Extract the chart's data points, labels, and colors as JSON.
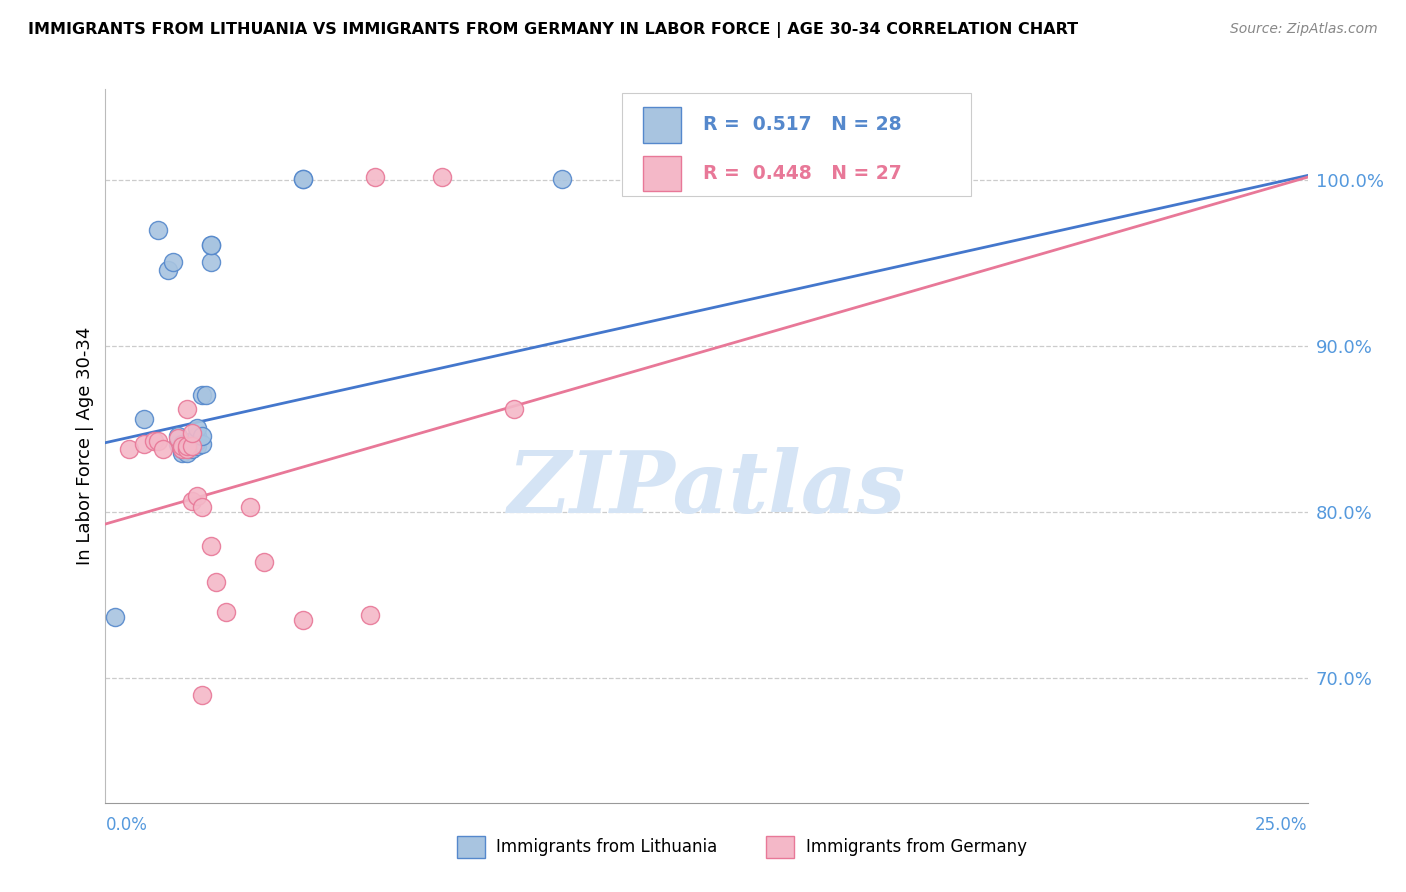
{
  "title": "IMMIGRANTS FROM LITHUANIA VS IMMIGRANTS FROM GERMANY IN LABOR FORCE | AGE 30-34 CORRELATION CHART",
  "source": "Source: ZipAtlas.com",
  "ylabel": "In Labor Force | Age 30-34",
  "legend_blue_R": 0.517,
  "legend_blue_N": 28,
  "legend_blue_label": "Immigrants from Lithuania",
  "legend_pink_R": 0.448,
  "legend_pink_N": 27,
  "legend_pink_label": "Immigrants from Germany",
  "blue_fill": "#A8C4E0",
  "blue_edge": "#5588CC",
  "pink_fill": "#F4B8C8",
  "pink_edge": "#E87898",
  "blue_line": "#4477CC",
  "pink_line": "#E87898",
  "tick_color": "#5599DD",
  "grid_color": "#CCCCCC",
  "watermark_color": "#D5E4F5",
  "xlim": [
    0.0,
    0.25
  ],
  "ylim": [
    0.625,
    1.055
  ],
  "yticks": [
    0.7,
    0.8,
    0.9,
    1.0
  ],
  "ytick_labels": [
    "70.0%",
    "80.0%",
    "90.0%",
    "100.0%"
  ],
  "blue_scatter_x": [
    0.002,
    0.008,
    0.011,
    0.013,
    0.014,
    0.015,
    0.015,
    0.016,
    0.016,
    0.016,
    0.017,
    0.017,
    0.018,
    0.018,
    0.019,
    0.019,
    0.019,
    0.019,
    0.02,
    0.02,
    0.02,
    0.021,
    0.022,
    0.022,
    0.022,
    0.041,
    0.041,
    0.095
  ],
  "blue_scatter_y": [
    0.737,
    0.856,
    0.97,
    0.946,
    0.951,
    0.841,
    0.846,
    0.836,
    0.838,
    0.841,
    0.836,
    0.841,
    0.838,
    0.843,
    0.84,
    0.843,
    0.846,
    0.851,
    0.841,
    0.846,
    0.871,
    0.871,
    0.951,
    0.961,
    0.961,
    1.001,
    1.001,
    1.001
  ],
  "pink_scatter_x": [
    0.005,
    0.008,
    0.01,
    0.011,
    0.012,
    0.015,
    0.016,
    0.016,
    0.017,
    0.017,
    0.017,
    0.018,
    0.018,
    0.018,
    0.019,
    0.02,
    0.02,
    0.022,
    0.023,
    0.025,
    0.03,
    0.033,
    0.041,
    0.055,
    0.056,
    0.07,
    0.085
  ],
  "pink_scatter_y": [
    0.838,
    0.841,
    0.843,
    0.843,
    0.838,
    0.845,
    0.838,
    0.84,
    0.838,
    0.84,
    0.862,
    0.807,
    0.84,
    0.848,
    0.81,
    0.69,
    0.803,
    0.78,
    0.758,
    0.74,
    0.803,
    0.77,
    0.735,
    0.738,
    1.002,
    1.002,
    0.862
  ],
  "blue_line_x": [
    0.0,
    0.25
  ],
  "blue_line_y": [
    0.842,
    1.003
  ],
  "pink_line_x": [
    0.0,
    0.25
  ],
  "pink_line_y": [
    0.793,
    1.002
  ]
}
